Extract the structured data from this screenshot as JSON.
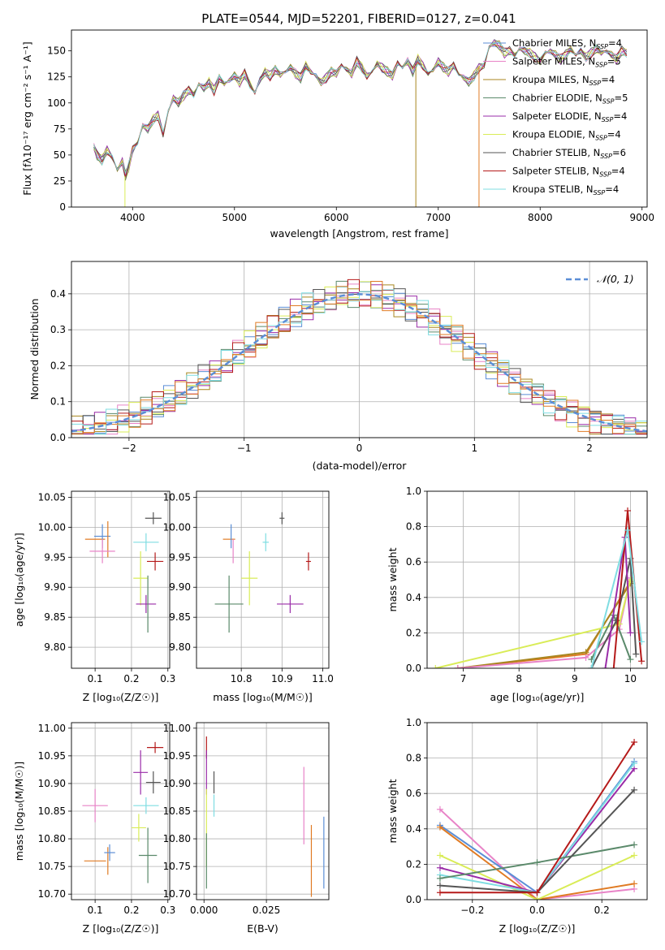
{
  "figure_title": "PLATE=0544, MJD=52201, FIBERID=0127, z=0.041",
  "colors": {
    "Chabrier MILES": "#5b8ed6",
    "Salpeter MILES": "#e883c7",
    "Kroupa MILES": "#a8861f",
    "Chabrier ELODIE": "#5b8a6b",
    "Salpeter ELODIE": "#9a2ca8",
    "Kroupa ELODIE": "#d9ec57",
    "Chabrier STELIB": "#555555",
    "Salpeter STELIB": "#b51a1a",
    "Kroupa STELIB": "#7fdde2",
    "Kroupa MILES (orange)": "#e07b24",
    "normal": "#5b8ed6"
  },
  "legend_spectrum": [
    {
      "label": "Chabrier MILES, N",
      "sub": "SSP",
      "val": "=4",
      "color": "#5b8ed6"
    },
    {
      "label": "Salpeter MILES, N",
      "sub": "SSP",
      "val": "=5",
      "color": "#e883c7"
    },
    {
      "label": "Kroupa MILES, N",
      "sub": "SSP",
      "val": "=4",
      "color": "#a8861f"
    },
    {
      "label": "Chabrier ELODIE, N",
      "sub": "SSP",
      "val": "=5",
      "color": "#5b8a6b"
    },
    {
      "label": "Salpeter ELODIE, N",
      "sub": "SSP",
      "val": "=4",
      "color": "#9a2ca8"
    },
    {
      "label": "Kroupa ELODIE, N",
      "sub": "SSP",
      "val": "=4",
      "color": "#d9ec57"
    },
    {
      "label": "Chabrier STELIB, N",
      "sub": "SSP",
      "val": "=6",
      "color": "#555555"
    },
    {
      "label": "Salpeter STELIB, N",
      "sub": "SSP",
      "val": "=4",
      "color": "#b51a1a"
    },
    {
      "label": "Kroupa STELIB, N",
      "sub": "SSP",
      "val": "=4",
      "color": "#7fdde2"
    }
  ],
  "chart_data": [
    {
      "type": "line",
      "id": "spectrum",
      "title": "PLATE=0544, MJD=52201, FIBERID=0127, z=0.041",
      "xlabel": "wavelength [Angstrom, rest frame]",
      "ylabel": "Flux [f_λ 10^-17 erg cm^-2 s^-1 A^-1]",
      "xlim": [
        3400,
        9050
      ],
      "ylim": [
        0,
        170
      ],
      "xticks": [
        4000,
        5000,
        6000,
        7000,
        8000,
        9000
      ],
      "yticks": [
        0,
        25,
        50,
        75,
        100,
        125,
        150
      ],
      "spectrum": {
        "x": [
          3620,
          3650,
          3700,
          3750,
          3800,
          3850,
          3900,
          3930,
          3960,
          4000,
          4050,
          4100,
          4150,
          4200,
          4250,
          4300,
          4350,
          4400,
          4450,
          4500,
          4550,
          4600,
          4650,
          4700,
          4750,
          4800,
          4850,
          4900,
          4950,
          5000,
          5050,
          5100,
          5150,
          5200,
          5250,
          5300,
          5350,
          5400,
          5450,
          5500,
          5550,
          5600,
          5650,
          5700,
          5750,
          5800,
          5850,
          5900,
          5950,
          6000,
          6050,
          6100,
          6150,
          6200,
          6250,
          6300,
          6350,
          6400,
          6450,
          6500,
          6550,
          6600,
          6650,
          6700,
          6750,
          6800,
          6850,
          6900,
          6950,
          7000,
          7050,
          7100,
          7150,
          7200,
          7250,
          7300,
          7350,
          7400,
          7450,
          7500,
          7550,
          7600,
          7650,
          7700,
          7750,
          7800,
          7850,
          7900,
          7950,
          8000,
          8050,
          8100,
          8150,
          8200,
          8250,
          8300,
          8350,
          8400,
          8450,
          8500,
          8550,
          8600,
          8650,
          8700,
          8750,
          8800,
          8850
        ],
        "y": [
          58,
          50,
          45,
          55,
          48,
          36,
          44,
          30,
          38,
          55,
          62,
          78,
          75,
          84,
          88,
          70,
          92,
          105,
          100,
          107,
          112,
          108,
          118,
          114,
          120,
          112,
          124,
          118,
          122,
          126,
          120,
          128,
          118,
          110,
          122,
          130,
          126,
          132,
          127,
          130,
          134,
          128,
          124,
          136,
          130,
          126,
          120,
          124,
          130,
          128,
          136,
          132,
          128,
          140,
          134,
          126,
          130,
          138,
          134,
          130,
          126,
          138,
          134,
          140,
          130,
          142,
          136,
          128,
          132,
          140,
          134,
          130,
          136,
          128,
          124,
          120,
          126,
          134,
          136,
          154,
          158,
          155,
          148,
          150,
          146,
          152,
          150,
          148,
          144,
          140,
          148,
          150,
          146,
          142,
          146,
          152,
          146,
          150,
          144,
          148,
          152,
          148,
          150,
          146,
          142,
          150,
          148
        ]
      }
    },
    {
      "type": "histogram",
      "id": "residuals",
      "xlabel": "(data-model)/error",
      "ylabel": "Normed distribution",
      "xlim": [
        -2.5,
        2.5
      ],
      "ylim": [
        0,
        0.49
      ],
      "xticks": [
        -2,
        -1,
        0,
        1,
        2
      ],
      "yticks": [
        0.0,
        0.1,
        0.2,
        0.3,
        0.4
      ],
      "legend": "N(0,1)",
      "bin_width": 0.1
    },
    {
      "type": "scatter",
      "id": "age_vs_Z",
      "xlabel": "Z [log10(Z/Zsun)]",
      "ylabel": "age [log10(age/yr)]",
      "xlim": [
        0.035,
        0.305
      ],
      "ylim": [
        9.765,
        10.06
      ],
      "xticks": [
        0.1,
        0.2,
        0.3
      ],
      "yticks": [
        9.8,
        9.85,
        9.9,
        9.95,
        10.0,
        10.05
      ],
      "points": [
        {
          "x": 0.1,
          "y": 9.98,
          "dx": 0.055,
          "dy": 0.0,
          "color": "#e07b24"
        },
        {
          "x": 0.12,
          "y": 9.985,
          "dx": 0.045,
          "dy": 0.04,
          "color": "#5b8ed6"
        },
        {
          "x": 0.135,
          "y": 9.98,
          "dx": 0.0,
          "dy": 0.06,
          "color": "#e07b24"
        },
        {
          "x": 0.12,
          "y": 9.96,
          "dx": 0.07,
          "dy": 0.04,
          "color": "#e883c7"
        },
        {
          "x": 0.26,
          "y": 10.015,
          "dx": 0.045,
          "dy": 0.02,
          "color": "#555555"
        },
        {
          "x": 0.24,
          "y": 9.975,
          "dx": 0.07,
          "dy": 0.03,
          "color": "#7fdde2"
        },
        {
          "x": 0.265,
          "y": 9.943,
          "dx": 0.045,
          "dy": 0.03,
          "color": "#b51a1a"
        },
        {
          "x": 0.225,
          "y": 9.915,
          "dx": 0.04,
          "dy": 0.09,
          "color": "#d9ec57"
        },
        {
          "x": 0.24,
          "y": 9.872,
          "dx": 0.055,
          "dy": 0.03,
          "color": "#9a2ca8"
        },
        {
          "x": 0.245,
          "y": 9.872,
          "dx": 0.0,
          "dy": 0.095,
          "color": "#5b8a6b"
        }
      ]
    },
    {
      "type": "scatter",
      "id": "age_vs_mass",
      "xlabel": "mass [log10(M/Msun)]",
      "ylabel": "",
      "xlim": [
        10.69,
        11.015
      ],
      "ylim": [
        9.765,
        10.06
      ],
      "xticks": [
        10.8,
        10.9,
        11.0
      ],
      "yticks": [
        9.8,
        9.85,
        9.9,
        9.95,
        10.0,
        10.05
      ],
      "points": [
        {
          "x": 10.77,
          "y": 9.98,
          "dx": 0.03,
          "dy": 0.0,
          "color": "#e07b24"
        },
        {
          "x": 10.775,
          "y": 9.985,
          "dx": 0.0,
          "dy": 0.04,
          "color": "#5b8ed6"
        },
        {
          "x": 10.78,
          "y": 9.96,
          "dx": 0.0,
          "dy": 0.04,
          "color": "#e883c7"
        },
        {
          "x": 10.9,
          "y": 10.015,
          "dx": 0.012,
          "dy": 0.02,
          "color": "#555555"
        },
        {
          "x": 10.86,
          "y": 9.975,
          "dx": 0.015,
          "dy": 0.03,
          "color": "#7fdde2"
        },
        {
          "x": 10.965,
          "y": 9.943,
          "dx": 0.012,
          "dy": 0.03,
          "color": "#b51a1a"
        },
        {
          "x": 10.82,
          "y": 9.915,
          "dx": 0.04,
          "dy": 0.09,
          "color": "#d9ec57"
        },
        {
          "x": 10.92,
          "y": 9.872,
          "dx": 0.065,
          "dy": 0.03,
          "color": "#9a2ca8"
        },
        {
          "x": 10.77,
          "y": 9.872,
          "dx": 0.07,
          "dy": 0.095,
          "color": "#5b8a6b"
        }
      ]
    },
    {
      "type": "line",
      "id": "massweight_vs_age",
      "xlabel": "age [log10(age/yr)]",
      "ylabel": "mass weight",
      "xlim": [
        6.35,
        10.3
      ],
      "ylim": [
        0,
        1.0
      ],
      "xticks": [
        7,
        8,
        9,
        10
      ],
      "yticks": [
        0.0,
        0.2,
        0.4,
        0.6,
        0.8,
        1.0
      ],
      "series": [
        {
          "color": "#e07b24",
          "x": [
            6.9,
            9.2,
            10.0
          ],
          "y": [
            0.0,
            0.08,
            0.49
          ]
        },
        {
          "color": "#a8861f",
          "x": [
            6.9,
            9.2,
            10.0
          ],
          "y": [
            0.0,
            0.09,
            0.48
          ]
        },
        {
          "color": "#e883c7",
          "x": [
            6.9,
            9.2,
            9.8,
            10.0
          ],
          "y": [
            0.0,
            0.06,
            0.22,
            0.51
          ]
        },
        {
          "color": "#d9ec57",
          "x": [
            6.5,
            9.8,
            10.0
          ],
          "y": [
            0.0,
            0.25,
            0.5
          ]
        },
        {
          "color": "#5b8a6b",
          "x": [
            9.3,
            9.7,
            10.0
          ],
          "y": [
            0.05,
            0.3,
            0.05
          ]
        },
        {
          "color": "#555555",
          "x": [
            9.3,
            9.75,
            10.0,
            10.1
          ],
          "y": [
            0.0,
            0.27,
            0.62,
            0.08
          ]
        },
        {
          "color": "#9a2ca8",
          "x": [
            9.55,
            9.9,
            10.0
          ],
          "y": [
            0.0,
            0.74,
            0.2
          ]
        },
        {
          "color": "#b51a1a",
          "x": [
            9.7,
            9.95,
            10.2
          ],
          "y": [
            0.0,
            0.89,
            0.04
          ]
        },
        {
          "color": "#7fdde2",
          "x": [
            9.3,
            9.95,
            10.2
          ],
          "y": [
            0.0,
            0.78,
            0.15
          ]
        }
      ]
    },
    {
      "type": "scatter",
      "id": "mass_vs_Z",
      "xlabel": "Z [log10(Z/Zsun)]",
      "ylabel": "mass [log10(M/Msun)]",
      "xlim": [
        0.035,
        0.305
      ],
      "ylim": [
        10.69,
        11.01
      ],
      "xticks": [
        0.1,
        0.2,
        0.3
      ],
      "yticks": [
        10.7,
        10.75,
        10.8,
        10.85,
        10.9,
        10.95,
        11.0
      ],
      "points": [
        {
          "x": 0.1,
          "y": 10.76,
          "dx": 0.06,
          "dy": 0.0,
          "color": "#e07b24"
        },
        {
          "x": 0.135,
          "y": 10.76,
          "dx": 0.0,
          "dy": 0.05,
          "color": "#e07b24"
        },
        {
          "x": 0.14,
          "y": 10.775,
          "dx": 0.03,
          "dy": 0.03,
          "color": "#5b8ed6"
        },
        {
          "x": 0.1,
          "y": 10.86,
          "dx": 0.07,
          "dy": 0.06,
          "color": "#e883c7"
        },
        {
          "x": 0.265,
          "y": 10.965,
          "dx": 0.045,
          "dy": 0.02,
          "color": "#b51a1a"
        },
        {
          "x": 0.225,
          "y": 10.92,
          "dx": 0.04,
          "dy": 0.08,
          "color": "#9a2ca8"
        },
        {
          "x": 0.26,
          "y": 10.902,
          "dx": 0.04,
          "dy": 0.04,
          "color": "#555555"
        },
        {
          "x": 0.24,
          "y": 10.86,
          "dx": 0.07,
          "dy": 0.03,
          "color": "#7fdde2"
        },
        {
          "x": 0.22,
          "y": 10.82,
          "dx": 0.04,
          "dy": 0.05,
          "color": "#d9ec57"
        },
        {
          "x": 0.245,
          "y": 10.77,
          "dx": 0.05,
          "dy": 0.1,
          "color": "#5b8a6b"
        }
      ]
    },
    {
      "type": "scatter",
      "id": "mass_vs_ebv",
      "xlabel": "E(B-V)",
      "ylabel": "",
      "xlim": [
        -0.003,
        0.05
      ],
      "ylim": [
        10.69,
        11.01
      ],
      "xticks": [
        0.0,
        0.025
      ],
      "xticklabels": [
        "0.000",
        "0.025"
      ],
      "yticks": [
        10.7,
        10.75,
        10.8,
        10.85,
        10.9,
        10.95,
        11.0
      ],
      "points": [
        {
          "x": 0.001,
          "y": 10.965,
          "dx": 0.0,
          "dy": 0.04,
          "color": "#b51a1a"
        },
        {
          "x": 0.001,
          "y": 10.92,
          "dx": 0.0,
          "dy": 0.08,
          "color": "#9a2ca8"
        },
        {
          "x": 0.004,
          "y": 10.902,
          "dx": 0.0,
          "dy": 0.04,
          "color": "#555555"
        },
        {
          "x": 0.004,
          "y": 10.86,
          "dx": 0.0,
          "dy": 0.04,
          "color": "#7fdde2"
        },
        {
          "x": 0.001,
          "y": 10.82,
          "dx": 0.0,
          "dy": 0.14,
          "color": "#d9ec57"
        },
        {
          "x": 0.001,
          "y": 10.76,
          "dx": 0.0,
          "dy": 0.1,
          "color": "#5b8a6b"
        },
        {
          "x": 0.04,
          "y": 10.86,
          "dx": 0.0,
          "dy": 0.14,
          "color": "#e883c7"
        },
        {
          "x": 0.043,
          "y": 10.76,
          "dx": 0.0,
          "dy": 0.13,
          "color": "#e07b24"
        },
        {
          "x": 0.048,
          "y": 10.775,
          "dx": 0.0,
          "dy": 0.13,
          "color": "#5b8ed6"
        }
      ]
    },
    {
      "type": "line",
      "id": "massweight_vs_Z",
      "xlabel": "Z [log10(Z/Zsun)]",
      "ylabel": "mass weight",
      "xlim": [
        -0.34,
        0.34
      ],
      "ylim": [
        0,
        1.0
      ],
      "xticks": [
        -0.2,
        0.0,
        0.2
      ],
      "xticklabels": [
        "−0.2",
        "0.0",
        "0.2"
      ],
      "yticks": [
        0.0,
        0.2,
        0.4,
        0.6,
        0.8,
        1.0
      ],
      "series": [
        {
          "color": "#e883c7",
          "x": [
            -0.3,
            0.0,
            0.3
          ],
          "y": [
            0.51,
            0.0,
            0.06
          ]
        },
        {
          "color": "#5b8ed6",
          "x": [
            -0.3,
            0.0,
            0.3
          ],
          "y": [
            0.42,
            0.04,
            0.78
          ]
        },
        {
          "color": "#e07b24",
          "x": [
            -0.3,
            0.0,
            0.3
          ],
          "y": [
            0.41,
            0.0,
            0.09
          ]
        },
        {
          "color": "#d9ec57",
          "x": [
            -0.3,
            0.0,
            0.3
          ],
          "y": [
            0.25,
            0.0,
            0.25
          ]
        },
        {
          "color": "#9a2ca8",
          "x": [
            -0.3,
            0.0,
            0.3
          ],
          "y": [
            0.18,
            0.04,
            0.74
          ]
        },
        {
          "color": "#7fdde2",
          "x": [
            -0.3,
            0.0,
            0.3
          ],
          "y": [
            0.14,
            0.04,
            0.77
          ]
        },
        {
          "color": "#5b8a6b",
          "x": [
            -0.3,
            0.0,
            0.3
          ],
          "y": [
            0.12,
            0.21,
            0.31
          ]
        },
        {
          "color": "#555555",
          "x": [
            -0.3,
            0.0,
            0.3
          ],
          "y": [
            0.08,
            0.04,
            0.62
          ]
        },
        {
          "color": "#b51a1a",
          "x": [
            -0.3,
            0.0,
            0.3
          ],
          "y": [
            0.04,
            0.04,
            0.89
          ]
        }
      ]
    }
  ]
}
